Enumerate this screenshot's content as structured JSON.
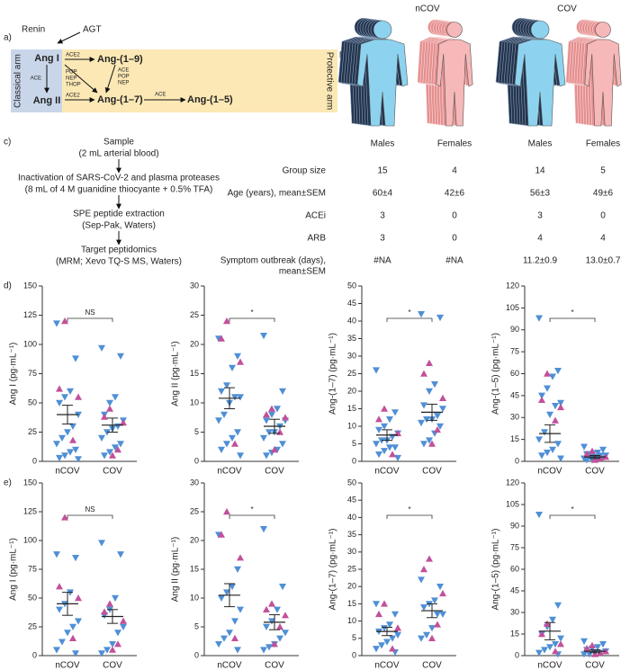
{
  "panel_labels": [
    "a)",
    "b)",
    "c)",
    "d)",
    "e)"
  ],
  "panel_a": {
    "renin": "Renin",
    "agt": "AGT",
    "ang_i": "Ang I",
    "ang_ii": "Ang II",
    "ang_1_9": "Ang-(1–9)",
    "ang_1_7": "Ang-(1–7)",
    "ang_1_5": "Ang-(1–5)",
    "classical_arm": "Classical arm",
    "protective_arm": "Protective arm",
    "ace_i_ii": "ACE",
    "ace2_top": "ACE2",
    "ace2_bottom": "ACE2",
    "ang_i_to_1_7": [
      "POP",
      "NEP",
      "THOP"
    ],
    "ang_1_9_to_1_7": [
      "ACE",
      "POP",
      "NEP"
    ],
    "ace_1_5": "ACE"
  },
  "panel_b": {
    "groups": [
      "nCOV",
      "COV"
    ],
    "sexes": [
      "Males",
      "Females",
      "Males",
      "Females"
    ],
    "table": {
      "rows": [
        {
          "label": [
            "Group size"
          ],
          "values": [
            15,
            4,
            14,
            5
          ]
        },
        {
          "label": [
            "Age (years), mean±SEM"
          ],
          "values": [
            "60±4",
            "42±6",
            "56±3",
            "49±6"
          ]
        },
        {
          "label": [
            "ACEi"
          ],
          "values": [
            3,
            0,
            3,
            0
          ]
        },
        {
          "label": [
            "ARB"
          ],
          "values": [
            3,
            0,
            4,
            4
          ]
        },
        {
          "label": [
            "Symptom outbreak (days),",
            "mean±SEM"
          ],
          "values": [
            "#NA",
            "#NA",
            "11.2±0.9",
            "13.0±0.7"
          ]
        }
      ]
    }
  },
  "panel_c": {
    "steps": [
      [
        "Sample",
        "(2 mL arterial blood)"
      ],
      [
        "Inactivation of SARS-CoV-2 and plasma proteases",
        "(8 mL of 4 M guanidine thiocyante + 0.5% TFA)"
      ],
      [
        "SPE peptide extraction",
        "(Sep-Pak, Waters)"
      ],
      [
        "Target peptidomics",
        "(MRM; Xevo TQ-S MS, Waters)"
      ]
    ]
  },
  "chart_data": [
    {
      "type": "dot",
      "ylabel": "Ang I (pg·mL⁻¹)",
      "categories": [
        "nCOV",
        "COV"
      ],
      "ylim": [
        0,
        150
      ],
      "yticks": [
        0,
        25,
        50,
        75,
        100,
        125,
        150
      ],
      "male_values": [
        [
          118,
          88,
          60,
          55,
          50,
          40,
          30,
          25,
          20,
          15,
          10,
          8,
          5,
          3,
          2
        ],
        [
          97,
          90,
          55,
          50,
          40,
          35,
          30,
          28,
          25,
          20,
          15,
          12,
          8,
          5
        ]
      ],
      "female_values": [
        [
          120,
          62,
          55,
          18
        ],
        [
          45,
          38,
          33,
          10,
          5
        ]
      ],
      "male_color": "#4f8fd6",
      "female_color": "#c2509a",
      "mean": [
        40,
        31
      ],
      "sem": [
        8,
        6
      ],
      "annotation": "NS"
    },
    {
      "type": "dot",
      "ylabel": "Ang II (pg·mL⁻¹)",
      "categories": [
        "nCOV",
        "COV"
      ],
      "ylim": [
        0,
        30
      ],
      "yticks": [
        0,
        5,
        10,
        15,
        20,
        25,
        30
      ],
      "male_values": [
        [
          21,
          18,
          16,
          13,
          12,
          11,
          11,
          10,
          8,
          7,
          5,
          4,
          3,
          2,
          1
        ],
        [
          21.5,
          12,
          9,
          8,
          7,
          7,
          6,
          5,
          5,
          4,
          3,
          2,
          1.5,
          1
        ]
      ],
      "female_values": [
        [
          24,
          21,
          17,
          3
        ],
        [
          9,
          8,
          7.5,
          5,
          2
        ]
      ],
      "male_color": "#4f8fd6",
      "female_color": "#c2509a",
      "mean": [
        10.8,
        6
      ],
      "sem": [
        1.8,
        1.2
      ],
      "annotation": "*"
    },
    {
      "type": "dot",
      "ylabel": "Ang-(1–7) (pg·mL⁻¹)",
      "categories": [
        "nCOV",
        "COV"
      ],
      "ylim": [
        0,
        50
      ],
      "yticks": [
        0,
        5,
        10,
        15,
        20,
        25,
        30,
        35,
        40,
        45,
        50
      ],
      "male_values": [
        [
          26,
          14,
          12,
          10,
          9,
          8,
          7,
          6,
          6,
          5,
          4,
          4,
          3,
          2,
          1
        ],
        [
          42,
          41,
          22,
          20,
          16,
          15,
          13,
          12,
          12,
          11,
          10,
          8,
          6,
          5
        ]
      ],
      "female_values": [
        [
          15,
          12,
          8,
          2
        ],
        [
          28,
          25,
          18,
          9,
          5
        ]
      ],
      "male_color": "#4f8fd6",
      "female_color": "#c2509a",
      "mean": [
        7.5,
        14
      ],
      "sem": [
        1.5,
        2.3
      ],
      "annotation": "*"
    },
    {
      "type": "dot",
      "ylabel": "Ang-(1–5) (pg·mL⁻¹)",
      "categories": [
        "nCOV",
        "COV"
      ],
      "ylim": [
        0,
        120
      ],
      "yticks": [
        0,
        15,
        30,
        45,
        60,
        75,
        90,
        105,
        120
      ],
      "male_values": [
        [
          98,
          62,
          58,
          50,
          45,
          40,
          38,
          32,
          20,
          15,
          12,
          8,
          6,
          4,
          2
        ],
        [
          10,
          8,
          6,
          5,
          5,
          4,
          4,
          3,
          3,
          2,
          2,
          2,
          1,
          1
        ]
      ],
      "female_values": [
        [
          60,
          42,
          37,
          28
        ],
        [
          7,
          5,
          3,
          2,
          1
        ]
      ],
      "male_color": "#4f8fd6",
      "female_color": "#c2509a",
      "mean": [
        19,
        3
      ],
      "sem": [
        6,
        1
      ],
      "annotation": "*"
    },
    {
      "type": "dot",
      "ylabel": "Ang I (pg·mL⁻¹)",
      "categories": [
        "nCOV",
        "COV"
      ],
      "ylim": [
        0,
        150
      ],
      "yticks": [
        0,
        25,
        50,
        75,
        100,
        125,
        150
      ],
      "male_values": [
        [
          88,
          85,
          55,
          45,
          40,
          30,
          25,
          20,
          12,
          5,
          2
        ],
        [
          98,
          88,
          50,
          40,
          35,
          25,
          20,
          10,
          5,
          2
        ]
      ],
      "female_values": [
        [
          120,
          60,
          50,
          15
        ],
        [
          45,
          38,
          30,
          10,
          5
        ]
      ],
      "male_color": "#4f8fd6",
      "female_color": "#c2509a",
      "mean": [
        45,
        34
      ],
      "sem": [
        10,
        6
      ],
      "annotation": "NS"
    },
    {
      "type": "dot",
      "ylabel": "Ang II (pg·mL⁻¹)",
      "categories": [
        "nCOV",
        "COV"
      ],
      "ylim": [
        0,
        30
      ],
      "yticks": [
        0,
        5,
        10,
        15,
        20,
        25,
        30
      ],
      "male_values": [
        [
          21,
          15,
          12,
          11,
          10,
          8,
          6,
          4,
          3,
          2,
          1
        ],
        [
          22,
          12,
          8,
          6,
          5,
          4,
          3,
          2,
          1.5,
          1
        ]
      ],
      "female_values": [
        [
          25,
          21,
          17,
          3
        ],
        [
          9,
          8,
          7,
          5,
          2
        ]
      ],
      "male_color": "#4f8fd6",
      "female_color": "#c2509a",
      "mean": [
        10.5,
        5.8
      ],
      "sem": [
        2,
        1.3
      ],
      "annotation": "*"
    },
    {
      "type": "dot",
      "ylabel": "Ang-(1–7) (pg·mL⁻¹)",
      "categories": [
        "nCOV",
        "COV"
      ],
      "ylim": [
        0,
        50
      ],
      "yticks": [
        0,
        5,
        10,
        15,
        20,
        25,
        30,
        35,
        40,
        45,
        50
      ],
      "male_values": [
        [
          15,
          12,
          9,
          8,
          7,
          6,
          5,
          4,
          3,
          2,
          1
        ],
        [
          22,
          20,
          16,
          15,
          14,
          12,
          12,
          8,
          6,
          5
        ]
      ],
      "female_values": [
        [
          15,
          12,
          8,
          2
        ],
        [
          28,
          25,
          18,
          9,
          5
        ]
      ],
      "male_color": "#4f8fd6",
      "female_color": "#c2509a",
      "mean": [
        7,
        13
      ],
      "sem": [
        1.2,
        2
      ],
      "annotation": "*"
    },
    {
      "type": "dot",
      "ylabel": "Ang-(1–5) (pg·mL⁻¹)",
      "categories": [
        "nCOV",
        "COV"
      ],
      "ylim": [
        0,
        120
      ],
      "yticks": [
        0,
        15,
        30,
        45,
        60,
        75,
        90,
        105,
        120
      ],
      "male_values": [
        [
          98,
          35,
          25,
          20,
          15,
          12,
          8,
          6,
          4,
          2,
          1
        ],
        [
          10,
          8,
          6,
          5,
          4,
          3,
          2,
          2,
          1,
          1
        ]
      ],
      "female_values": [
        [
          22,
          15,
          8,
          3
        ],
        [
          7,
          5,
          3,
          2,
          1
        ]
      ],
      "male_color": "#4f8fd6",
      "female_color": "#c2509a",
      "mean": [
        17,
        3
      ],
      "sem": [
        6,
        1
      ],
      "annotation": "*"
    }
  ]
}
